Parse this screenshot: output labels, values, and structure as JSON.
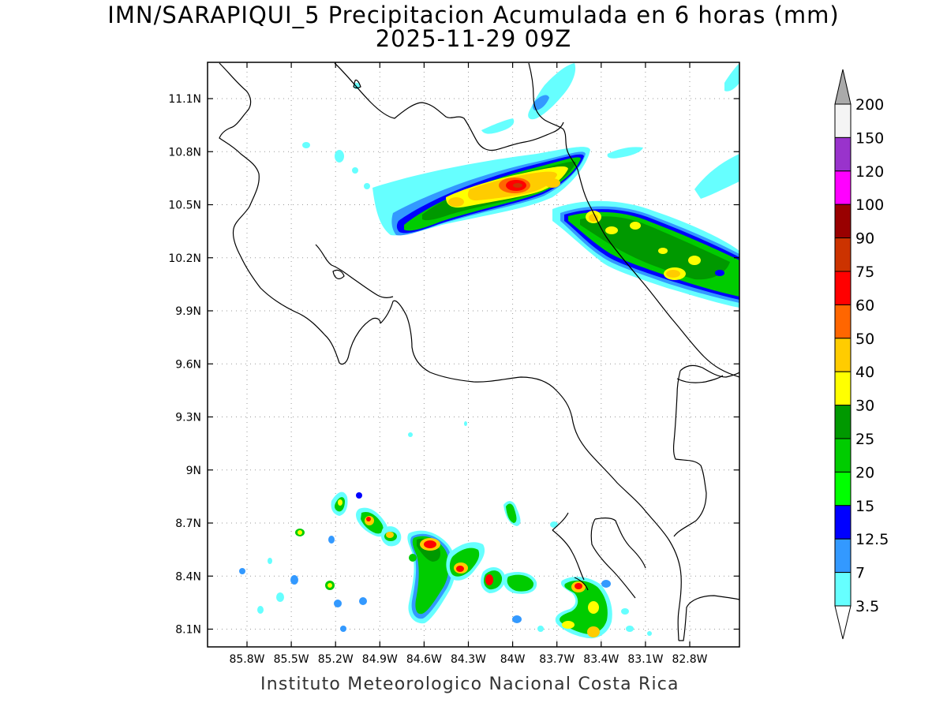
{
  "title": "IMN/SARAPIQUI_5 Precipitacion Acumulada en 6 horas (mm)",
  "subtitle": "2025-11-29 09Z",
  "footer": "Instituto Meteorologico Nacional Costa Rica",
  "axes": {
    "lon_ticks": [
      "85.8W",
      "85.5W",
      "85.2W",
      "84.9W",
      "84.6W",
      "84.3W",
      "84W",
      "83.7W",
      "83.4W",
      "83.1W",
      "82.8W"
    ],
    "lat_ticks": [
      "11.1N",
      "10.8N",
      "10.5N",
      "10.2N",
      "9.9N",
      "9.6N",
      "9.3N",
      "9N",
      "8.7N",
      "8.4N",
      "8.1N"
    ],
    "grid": "dotted"
  },
  "colorbar": {
    "levels": [
      "200",
      "150",
      "120",
      "100",
      "90",
      "75",
      "60",
      "50",
      "40",
      "30",
      "25",
      "20",
      "15",
      "12.5",
      "7",
      "3.5"
    ],
    "colors": [
      "#f4f4f4",
      "#9933cc",
      "#ff00ff",
      "#990000",
      "#cc3300",
      "#ff0000",
      "#ff6600",
      "#ffcc00",
      "#ffff00",
      "#009900",
      "#00cc00",
      "#00ff00",
      "#0000ff",
      "#3399ff",
      "#66ffff"
    ],
    "top_arrow_color": "#aaaaaa",
    "bottom_arrow_color": "#ffffff"
  }
}
